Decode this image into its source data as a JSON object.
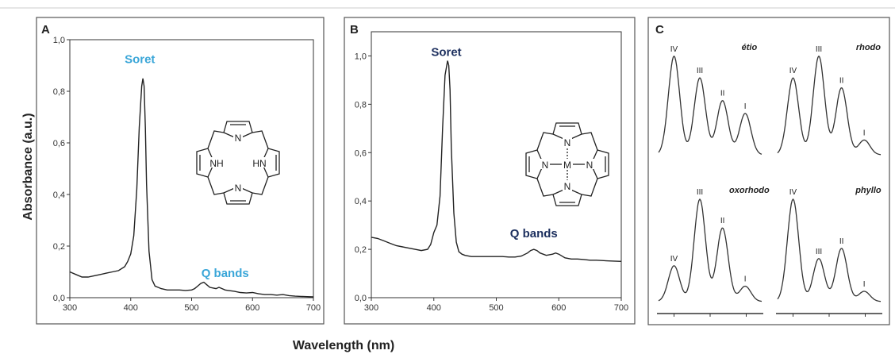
{
  "figure": {
    "ylabel": "Absorbance (a.u.)",
    "xlabel": "Wavelength (nm)"
  },
  "chart_data": [
    {
      "panel": "A",
      "type": "line",
      "xlim": [
        300,
        700
      ],
      "ylim": [
        0,
        1.0
      ],
      "xticks": [
        300,
        400,
        500,
        600,
        700
      ],
      "yticks": [
        "0,0",
        "0,2",
        "0,4",
        "0,6",
        "0,8",
        "1,0"
      ],
      "annotations": [
        {
          "text": "Soret",
          "x": 415,
          "y": 0.91
        },
        {
          "text": "Q bands",
          "x": 555,
          "y": 0.08
        }
      ],
      "label_color": "#3aa6d8",
      "series": [
        {
          "x": [
            300,
            310,
            320,
            330,
            340,
            350,
            360,
            370,
            380,
            390,
            395,
            400,
            405,
            410,
            414,
            418,
            420,
            422,
            424,
            426,
            430,
            435,
            440,
            445,
            450,
            460,
            470,
            480,
            490,
            500,
            505,
            510,
            515,
            520,
            525,
            530,
            540,
            545,
            550,
            555,
            560,
            570,
            580,
            590,
            600,
            610,
            620,
            630,
            640,
            650,
            660,
            670,
            680,
            690,
            700
          ],
          "y": [
            0.1,
            0.09,
            0.08,
            0.08,
            0.085,
            0.09,
            0.095,
            0.1,
            0.105,
            0.12,
            0.14,
            0.17,
            0.24,
            0.42,
            0.66,
            0.82,
            0.85,
            0.82,
            0.66,
            0.44,
            0.18,
            0.07,
            0.045,
            0.04,
            0.035,
            0.03,
            0.03,
            0.03,
            0.028,
            0.03,
            0.035,
            0.045,
            0.055,
            0.06,
            0.05,
            0.04,
            0.035,
            0.04,
            0.035,
            0.03,
            0.028,
            0.025,
            0.02,
            0.018,
            0.02,
            0.015,
            0.012,
            0.012,
            0.01,
            0.012,
            0.008,
            0.006,
            0.005,
            0.004,
            0.003
          ]
        }
      ]
    },
    {
      "panel": "B",
      "type": "line",
      "xlim": [
        300,
        700
      ],
      "ylim": [
        0,
        1.1
      ],
      "xticks": [
        300,
        400,
        500,
        600,
        700
      ],
      "yticks": [
        "0,0",
        "0,2",
        "0,4",
        "0,6",
        "0,8",
        "1,0"
      ],
      "annotations": [
        {
          "text": "Soret",
          "x": 420,
          "y": 1.0
        },
        {
          "text": "Q bands",
          "x": 560,
          "y": 0.25
        }
      ],
      "label_color": "#1c2f5e",
      "series": [
        {
          "x": [
            300,
            310,
            320,
            330,
            340,
            350,
            360,
            370,
            380,
            390,
            395,
            400,
            405,
            410,
            414,
            418,
            422,
            424,
            426,
            428,
            432,
            436,
            440,
            445,
            450,
            460,
            470,
            480,
            490,
            500,
            510,
            520,
            530,
            540,
            550,
            555,
            560,
            565,
            570,
            580,
            590,
            595,
            600,
            610,
            620,
            630,
            640,
            650,
            660,
            680,
            700
          ],
          "y": [
            0.25,
            0.245,
            0.235,
            0.225,
            0.215,
            0.21,
            0.205,
            0.2,
            0.195,
            0.2,
            0.22,
            0.27,
            0.3,
            0.42,
            0.7,
            0.92,
            0.98,
            0.96,
            0.86,
            0.62,
            0.35,
            0.23,
            0.19,
            0.18,
            0.175,
            0.17,
            0.17,
            0.17,
            0.17,
            0.17,
            0.17,
            0.168,
            0.168,
            0.172,
            0.185,
            0.195,
            0.2,
            0.195,
            0.185,
            0.175,
            0.18,
            0.185,
            0.18,
            0.165,
            0.16,
            0.16,
            0.158,
            0.155,
            0.155,
            0.152,
            0.15
          ]
        }
      ]
    }
  ],
  "panel_c": {
    "label": "C",
    "spectra": [
      {
        "name": "étio",
        "peaks": [
          {
            "label": "IV",
            "rel": 1.0
          },
          {
            "label": "III",
            "rel": 0.78
          },
          {
            "label": "II",
            "rel": 0.55
          },
          {
            "label": "I",
            "rel": 0.42
          }
        ]
      },
      {
        "name": "rhodo",
        "peaks": [
          {
            "label": "IV",
            "rel": 0.78
          },
          {
            "label": "III",
            "rel": 1.0
          },
          {
            "label": "II",
            "rel": 0.68
          },
          {
            "label": "I",
            "rel": 0.15
          }
        ]
      },
      {
        "name": "oxorhodo",
        "peaks": [
          {
            "label": "IV",
            "rel": 0.35
          },
          {
            "label": "III",
            "rel": 1.0
          },
          {
            "label": "II",
            "rel": 0.72
          },
          {
            "label": "I",
            "rel": 0.15
          }
        ]
      },
      {
        "name": "phyllo",
        "peaks": [
          {
            "label": "IV",
            "rel": 1.0
          },
          {
            "label": "III",
            "rel": 0.42
          },
          {
            "label": "II",
            "rel": 0.52
          },
          {
            "label": "I",
            "rel": 0.1
          }
        ]
      }
    ]
  },
  "molecules": {
    "free_base": {
      "atoms": [
        "N",
        "NH",
        "HN",
        "N"
      ]
    },
    "metallo": {
      "atoms": [
        "N",
        "N",
        "M",
        "N",
        "N"
      ]
    }
  },
  "panel_labels": [
    "A",
    "B",
    "C"
  ],
  "colors": {
    "frame": "#555555",
    "curve": "#222222",
    "soret_a": "#3aa6d8",
    "soret_b": "#1c2f5e"
  }
}
